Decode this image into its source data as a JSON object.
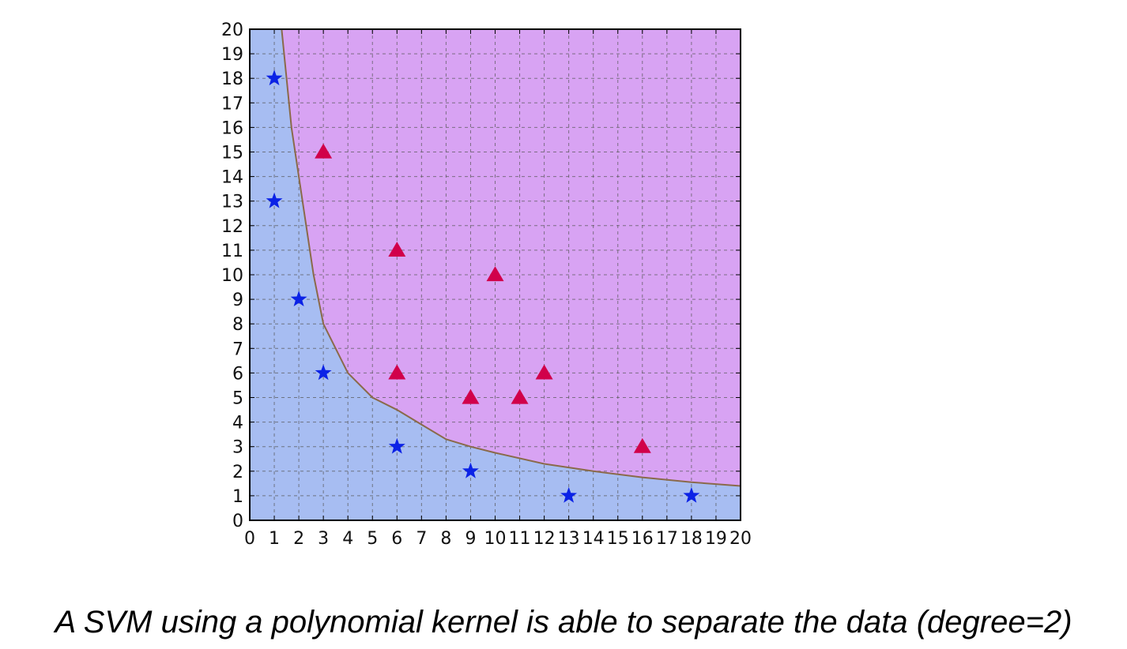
{
  "caption": "A SVM using a polynomial kernel is able to separate the data (degree=2)",
  "chart_data": {
    "type": "scatter",
    "title": "",
    "xlabel": "",
    "ylabel": "",
    "xlim": [
      0,
      20
    ],
    "ylim": [
      0,
      20
    ],
    "xticks": [
      "0",
      "1",
      "2",
      "3",
      "4",
      "5",
      "6",
      "7",
      "8",
      "9",
      "10",
      "11",
      "12",
      "13",
      "14",
      "15",
      "16",
      "17",
      "18",
      "19",
      "20"
    ],
    "yticks": [
      "0",
      "1",
      "2",
      "3",
      "4",
      "5",
      "6",
      "7",
      "8",
      "9",
      "10",
      "11",
      "12",
      "13",
      "14",
      "15",
      "16",
      "17",
      "18",
      "19",
      "20"
    ],
    "grid": true,
    "grid_style": "dashed",
    "regions": {
      "below_boundary_color": "#a7bdf2",
      "above_boundary_color": "#d8a3f3"
    },
    "decision_boundary": {
      "color": "#8a6a4a",
      "points": [
        [
          1.3,
          20
        ],
        [
          1.5,
          18
        ],
        [
          1.7,
          16
        ],
        [
          2.0,
          14
        ],
        [
          2.3,
          12
        ],
        [
          2.6,
          10
        ],
        [
          3.0,
          8
        ],
        [
          3.5,
          7
        ],
        [
          4.0,
          6
        ],
        [
          5.0,
          5
        ],
        [
          6.0,
          4.5
        ],
        [
          7.0,
          3.9
        ],
        [
          8.0,
          3.3
        ],
        [
          9.0,
          3.0
        ],
        [
          10.0,
          2.75
        ],
        [
          12.0,
          2.3
        ],
        [
          14.0,
          2.0
        ],
        [
          16.0,
          1.75
        ],
        [
          18.0,
          1.55
        ],
        [
          20.0,
          1.4
        ]
      ]
    },
    "series": [
      {
        "marker": "star",
        "color": "#0b22e6",
        "points": [
          [
            1,
            18
          ],
          [
            1,
            13
          ],
          [
            2,
            9
          ],
          [
            3,
            6
          ],
          [
            6,
            3
          ],
          [
            9,
            2
          ],
          [
            13,
            1
          ],
          [
            18,
            1
          ]
        ]
      },
      {
        "marker": "triangle",
        "color": "#d1004a",
        "points": [
          [
            3,
            15
          ],
          [
            6,
            11
          ],
          [
            10,
            10
          ],
          [
            6,
            6
          ],
          [
            9,
            5
          ],
          [
            11,
            5
          ],
          [
            12,
            6
          ],
          [
            16,
            3
          ]
        ]
      }
    ]
  }
}
